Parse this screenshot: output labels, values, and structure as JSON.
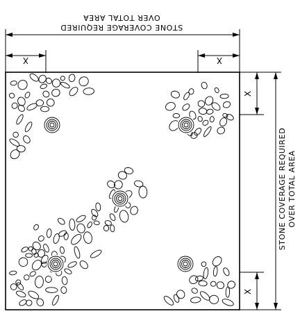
{
  "labels": {
    "top_line1": "STONE COVERAGE REQUIRED",
    "top_line2": "OVER TOTAL AREA",
    "right_line1": "STONE COVERAGE REQUIRED",
    "right_line2": "OVER TOTAL AREA",
    "dim_x": "X"
  }
}
